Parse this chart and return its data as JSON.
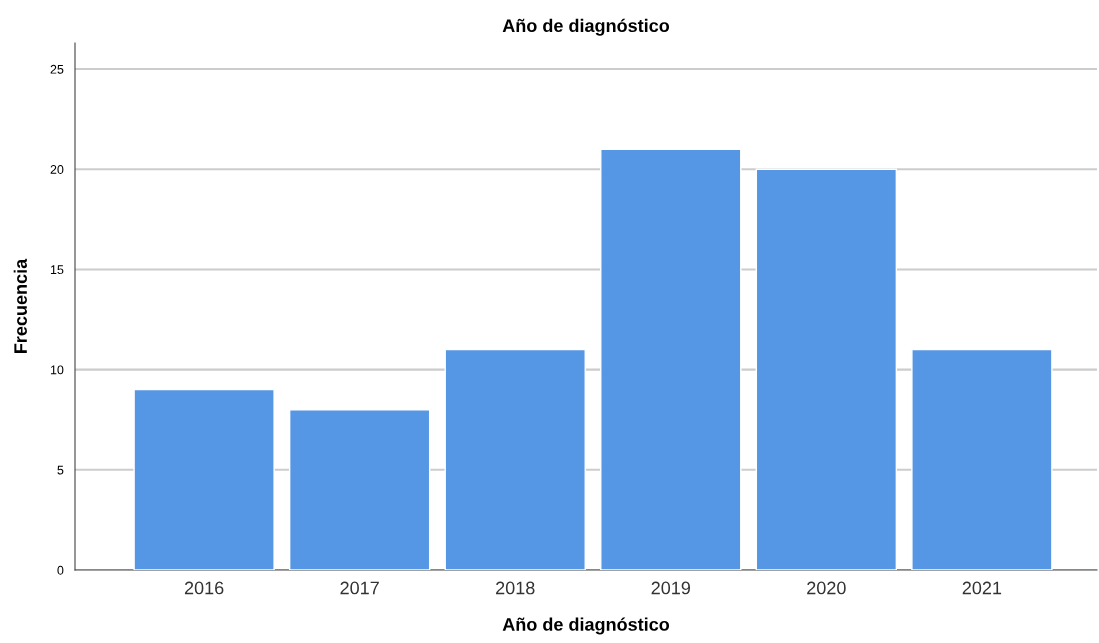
{
  "chart_data": {
    "type": "bar",
    "title": "Año de diagnóstico",
    "xlabel": "Año de diagnóstico",
    "ylabel": "Frecuencia",
    "categories": [
      "2016",
      "2017",
      "2018",
      "2019",
      "2020",
      "2021"
    ],
    "values": [
      9,
      8,
      11,
      21,
      20,
      11
    ],
    "color": "#5596e5",
    "ylim": [
      0,
      26.3
    ],
    "yticks": [
      0,
      5,
      10,
      15,
      20,
      25
    ],
    "grid": "y",
    "legend": false
  }
}
